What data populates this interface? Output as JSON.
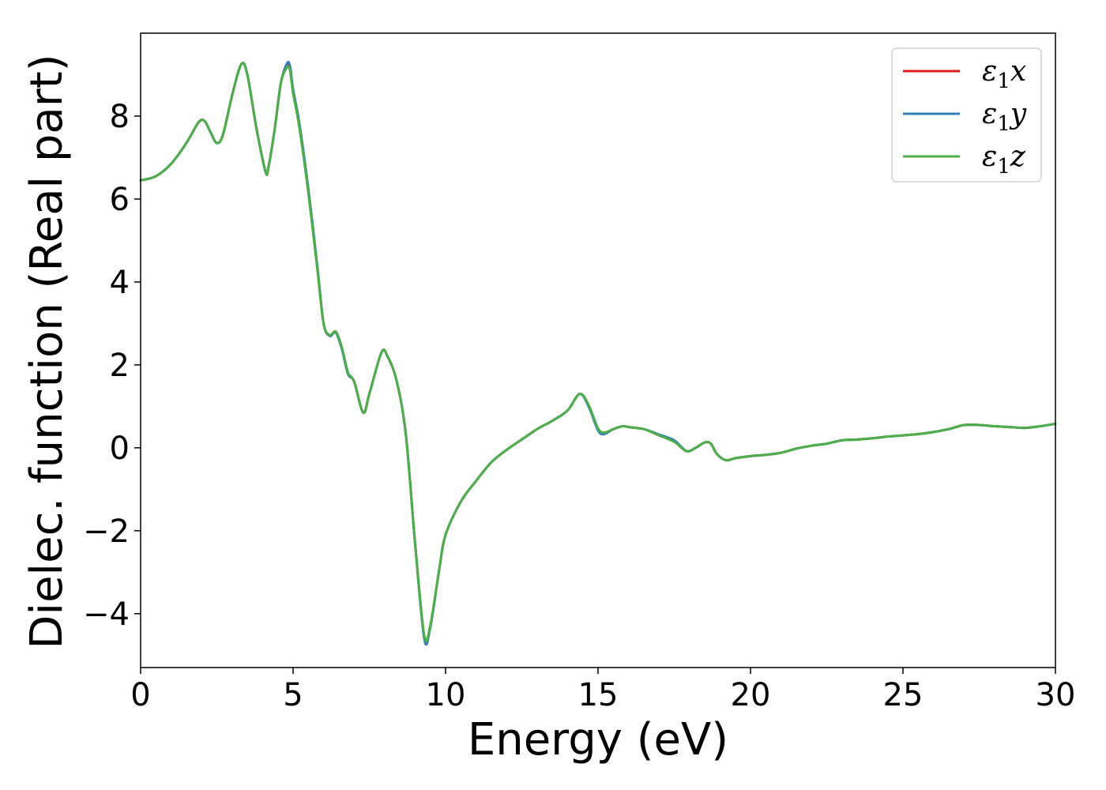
{
  "chart_data": {
    "type": "line",
    "title": "",
    "xlabel": "Energy (eV)",
    "ylabel": "Dielec. function (Real part)",
    "xlim": [
      0,
      30
    ],
    "ylim": [
      -5.3,
      10.0
    ],
    "xticks": [
      0,
      5,
      10,
      15,
      20,
      25,
      30
    ],
    "yticks": [
      -4,
      -2,
      0,
      2,
      4,
      6,
      8
    ],
    "grid": false,
    "legend": "top-right",
    "series": [
      {
        "name": "ε₁x",
        "label_base": "ε",
        "label_sub": "1",
        "label_tail": "x",
        "color": "#e41a1c",
        "x": [
          0,
          0.5,
          1.0,
          1.5,
          1.9,
          2.1,
          2.3,
          2.5,
          2.7,
          3.0,
          3.3,
          3.5,
          3.8,
          4.1,
          4.2,
          4.4,
          4.6,
          4.8,
          4.9,
          5.0,
          5.2,
          5.5,
          5.8,
          6.0,
          6.2,
          6.4,
          6.6,
          6.8,
          7.0,
          7.3,
          7.5,
          7.9,
          8.1,
          8.4,
          8.7,
          9.0,
          9.3,
          9.5,
          9.8,
          10.0,
          10.5,
          11.0,
          11.5,
          12.0,
          12.5,
          13.0,
          13.5,
          14.0,
          14.4,
          14.7,
          15.0,
          15.2,
          15.5,
          15.8,
          16.0,
          16.5,
          17.0,
          17.5,
          17.9,
          18.2,
          18.5,
          18.7,
          18.9,
          19.2,
          19.5,
          20.0,
          20.5,
          21.0,
          21.5,
          22.0,
          22.5,
          23.0,
          23.5,
          24.0,
          24.5,
          25.0,
          25.5,
          26.0,
          26.5,
          27.0,
          27.5,
          28.0,
          28.5,
          29.0,
          29.5,
          30.0
        ],
        "y": [
          6.45,
          6.55,
          6.85,
          7.35,
          7.85,
          7.88,
          7.6,
          7.35,
          7.55,
          8.5,
          9.25,
          9.0,
          7.7,
          6.65,
          6.8,
          7.7,
          8.8,
          9.2,
          9.15,
          8.6,
          7.8,
          6.2,
          4.3,
          3.0,
          2.7,
          2.8,
          2.4,
          1.8,
          1.6,
          0.85,
          1.3,
          2.3,
          2.2,
          1.6,
          0.3,
          -2.3,
          -4.55,
          -4.3,
          -2.9,
          -2.1,
          -1.3,
          -0.8,
          -0.35,
          -0.05,
          0.2,
          0.45,
          0.65,
          0.9,
          1.3,
          1.0,
          0.45,
          0.35,
          0.45,
          0.52,
          0.5,
          0.45,
          0.3,
          0.15,
          -0.08,
          0.0,
          0.13,
          0.1,
          -0.15,
          -0.3,
          -0.25,
          -0.2,
          -0.17,
          -0.12,
          -0.02,
          0.05,
          0.1,
          0.18,
          0.2,
          0.23,
          0.27,
          0.3,
          0.33,
          0.38,
          0.45,
          0.55,
          0.55,
          0.52,
          0.5,
          0.48,
          0.52,
          0.58
        ]
      },
      {
        "name": "ε₁y",
        "label_base": "ε",
        "label_sub": "1",
        "label_tail": "y",
        "color": "#377eb8",
        "x": [
          0,
          0.5,
          1.0,
          1.5,
          1.9,
          2.1,
          2.3,
          2.5,
          2.7,
          3.0,
          3.3,
          3.5,
          3.8,
          4.1,
          4.2,
          4.4,
          4.6,
          4.8,
          4.9,
          5.0,
          5.2,
          5.5,
          5.8,
          6.0,
          6.2,
          6.4,
          6.6,
          6.8,
          7.0,
          7.3,
          7.5,
          7.9,
          8.1,
          8.4,
          8.7,
          9.0,
          9.3,
          9.5,
          9.8,
          10.0,
          10.5,
          11.0,
          11.5,
          12.0,
          12.5,
          13.0,
          13.5,
          14.0,
          14.4,
          14.7,
          15.0,
          15.2,
          15.5,
          15.8,
          16.0,
          16.5,
          17.0,
          17.5,
          17.9,
          18.2,
          18.5,
          18.7,
          18.9,
          19.2,
          19.5,
          20.0,
          20.5,
          21.0,
          21.5,
          22.0,
          22.5,
          23.0,
          23.5,
          24.0,
          24.5,
          25.0,
          25.5,
          26.0,
          26.5,
          27.0,
          27.5,
          28.0,
          28.5,
          29.0,
          29.5,
          30.0
        ],
        "y": [
          6.45,
          6.55,
          6.85,
          7.35,
          7.85,
          7.88,
          7.6,
          7.35,
          7.55,
          8.5,
          9.25,
          9.0,
          7.7,
          6.65,
          6.8,
          7.7,
          8.8,
          9.27,
          9.2,
          8.65,
          7.85,
          6.25,
          4.35,
          3.0,
          2.7,
          2.78,
          2.38,
          1.78,
          1.6,
          0.85,
          1.3,
          2.3,
          2.2,
          1.6,
          0.3,
          -2.3,
          -4.6,
          -4.33,
          -2.9,
          -2.1,
          -1.3,
          -0.8,
          -0.35,
          -0.05,
          0.2,
          0.45,
          0.65,
          0.9,
          1.3,
          0.98,
          0.42,
          0.33,
          0.45,
          0.52,
          0.5,
          0.45,
          0.32,
          0.18,
          -0.08,
          0.0,
          0.13,
          0.1,
          -0.15,
          -0.3,
          -0.25,
          -0.2,
          -0.17,
          -0.12,
          -0.02,
          0.05,
          0.1,
          0.18,
          0.2,
          0.23,
          0.27,
          0.3,
          0.33,
          0.38,
          0.45,
          0.55,
          0.55,
          0.52,
          0.5,
          0.48,
          0.52,
          0.58
        ]
      },
      {
        "name": "ε₁z",
        "label_base": "ε",
        "label_sub": "1",
        "label_tail": "z",
        "color": "#4daf4a",
        "x": [
          0,
          0.5,
          1.0,
          1.5,
          1.9,
          2.1,
          2.3,
          2.5,
          2.7,
          3.0,
          3.3,
          3.5,
          3.8,
          4.1,
          4.2,
          4.4,
          4.6,
          4.8,
          4.9,
          5.0,
          5.2,
          5.5,
          5.8,
          6.0,
          6.2,
          6.4,
          6.6,
          6.8,
          7.0,
          7.3,
          7.5,
          7.9,
          8.1,
          8.4,
          8.7,
          9.0,
          9.3,
          9.5,
          9.8,
          10.0,
          10.5,
          11.0,
          11.5,
          12.0,
          12.5,
          13.0,
          13.5,
          14.0,
          14.4,
          14.7,
          15.0,
          15.2,
          15.5,
          15.8,
          16.0,
          16.5,
          17.0,
          17.5,
          17.9,
          18.2,
          18.5,
          18.7,
          18.9,
          19.2,
          19.5,
          20.0,
          20.5,
          21.0,
          21.5,
          22.0,
          22.5,
          23.0,
          23.5,
          24.0,
          24.5,
          25.0,
          25.5,
          26.0,
          26.5,
          27.0,
          27.5,
          28.0,
          28.5,
          29.0,
          29.5,
          30.0
        ],
        "y": [
          6.45,
          6.55,
          6.85,
          7.35,
          7.85,
          7.88,
          7.6,
          7.35,
          7.55,
          8.5,
          9.25,
          9.0,
          7.7,
          6.65,
          6.8,
          7.7,
          8.8,
          9.17,
          9.1,
          8.55,
          7.75,
          6.15,
          4.28,
          3.0,
          2.72,
          2.8,
          2.42,
          1.82,
          1.6,
          0.85,
          1.3,
          2.3,
          2.2,
          1.6,
          0.3,
          -2.3,
          -4.52,
          -4.28,
          -2.9,
          -2.1,
          -1.3,
          -0.8,
          -0.35,
          -0.05,
          0.2,
          0.45,
          0.65,
          0.9,
          1.3,
          1.02,
          0.47,
          0.37,
          0.45,
          0.52,
          0.5,
          0.45,
          0.3,
          0.14,
          -0.08,
          0.0,
          0.13,
          0.1,
          -0.15,
          -0.3,
          -0.25,
          -0.2,
          -0.17,
          -0.12,
          -0.02,
          0.05,
          0.1,
          0.18,
          0.2,
          0.23,
          0.27,
          0.3,
          0.33,
          0.38,
          0.45,
          0.55,
          0.55,
          0.52,
          0.5,
          0.48,
          0.52,
          0.58
        ]
      }
    ]
  }
}
